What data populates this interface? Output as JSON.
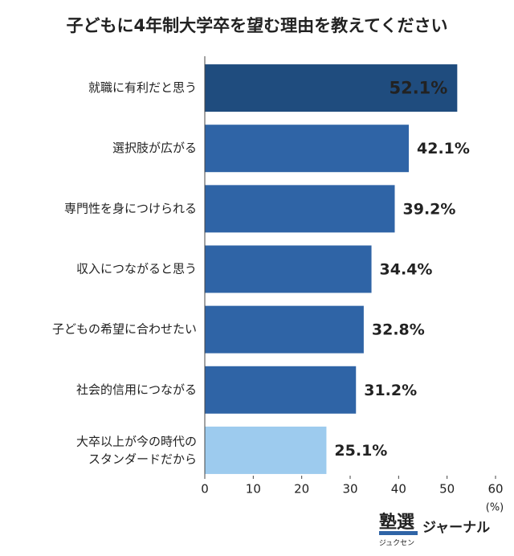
{
  "chart_data": {
    "type": "barh",
    "title": "子どもに4年制大学卒を望む理由を教えてください",
    "categories": [
      "就職に有利だと思う",
      "選択肢が広がる",
      "専門性を身につけられる",
      "収入につながると思う",
      "子どもの希望に合わせたい",
      "社会的信用につながる",
      "大卒以上が今の時代の\nスタンダードだから"
    ],
    "values": [
      52.1,
      42.1,
      39.2,
      34.4,
      32.8,
      31.2,
      25.1
    ],
    "value_labels": [
      "52.1%",
      "42.1%",
      "39.2%",
      "34.4%",
      "32.8%",
      "31.2%",
      "25.1%"
    ],
    "colors": [
      "#1f4c7e",
      "#2f64a6",
      "#2f64a6",
      "#2f64a6",
      "#2f64a6",
      "#2f64a6",
      "#9dcbee"
    ],
    "xlim": [
      0,
      60
    ],
    "xticks": [
      0,
      10,
      20,
      30,
      40,
      50,
      60
    ],
    "xlabel": "(%)",
    "grid": false
  },
  "logo": {
    "main": "塾選",
    "sub": "ジュクセン",
    "name": "ジャーナル"
  }
}
